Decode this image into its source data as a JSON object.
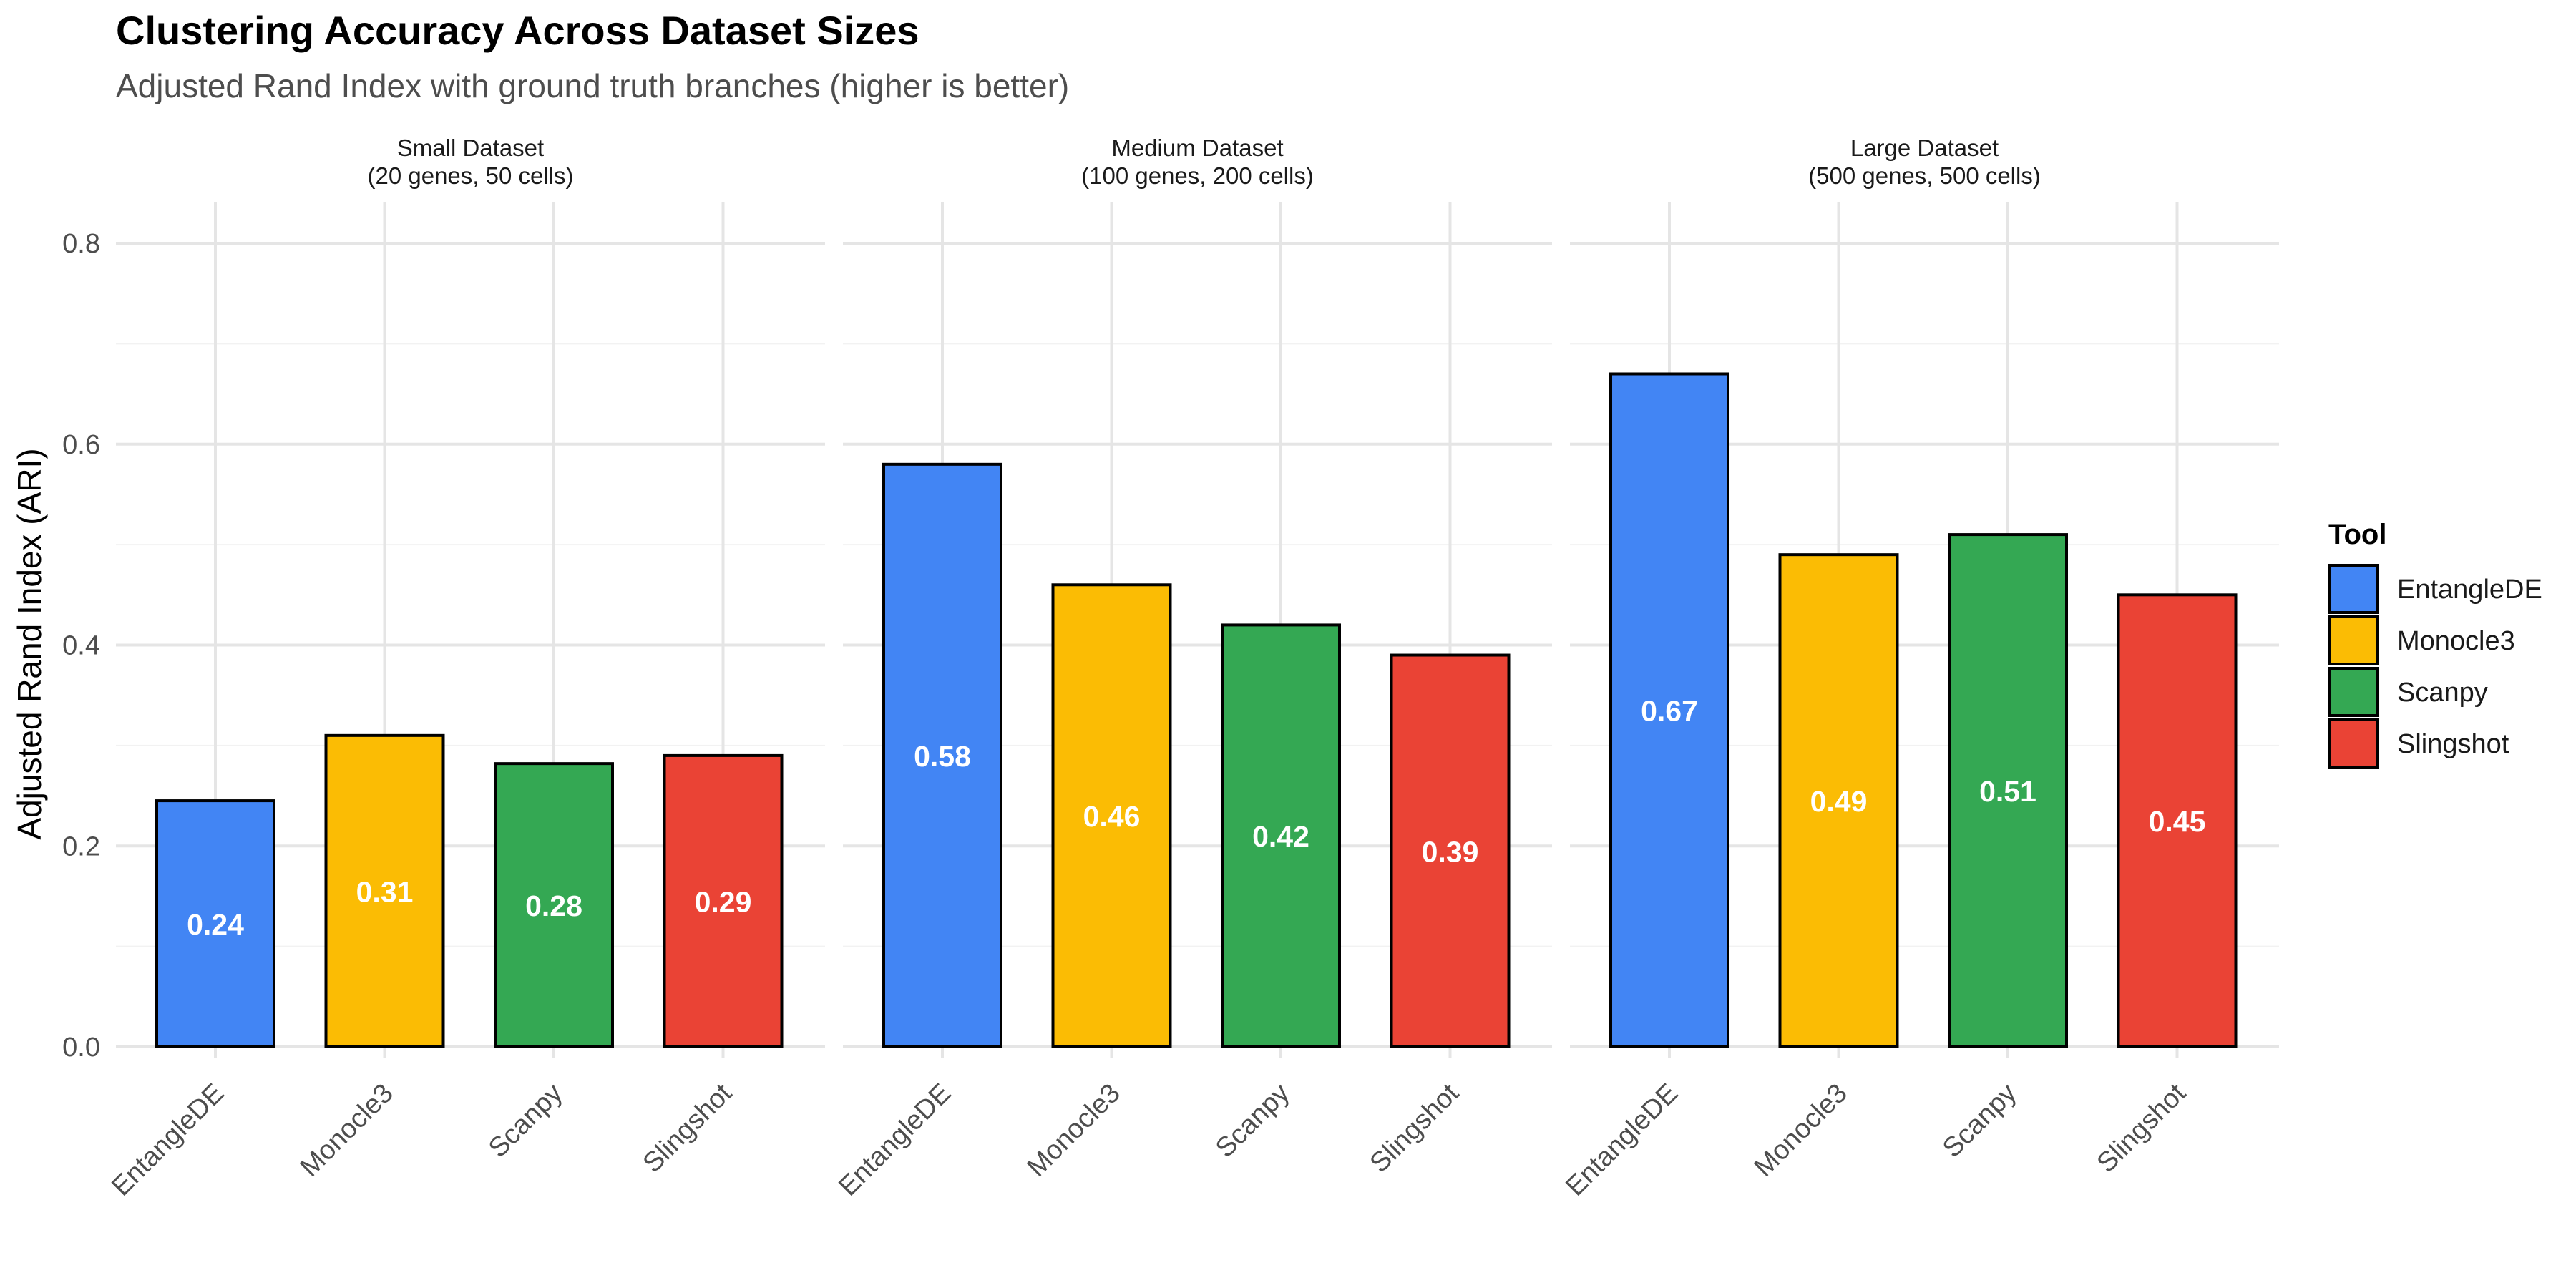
{
  "chart_data": {
    "type": "bar",
    "title": "Clustering Accuracy Across Dataset Sizes",
    "subtitle": "Adjusted Rand Index with ground truth branches (higher is better)",
    "ylabel": "Adjusted Rand Index (ARI)",
    "xlabel": "",
    "ylim": [
      0,
      0.8
    ],
    "yticks": [
      0.0,
      0.2,
      0.4,
      0.6,
      0.8
    ],
    "ytick_labels": [
      "0.0",
      "0.2",
      "0.4",
      "0.6",
      "0.8"
    ],
    "grid": true,
    "categories": [
      "EntangleDE",
      "Monocle3",
      "Scanpy",
      "Slingshot"
    ],
    "facets": [
      {
        "title_line1": "Small Dataset",
        "title_line2": "(20 genes, 50 cells)",
        "values": [
          0.245,
          0.31,
          0.282,
          0.29
        ],
        "labels": [
          "0.24",
          "0.31",
          "0.28",
          "0.29"
        ]
      },
      {
        "title_line1": "Medium Dataset",
        "title_line2": "(100 genes, 200 cells)",
        "values": [
          0.58,
          0.46,
          0.42,
          0.39
        ],
        "labels": [
          "0.58",
          "0.46",
          "0.42",
          "0.39"
        ]
      },
      {
        "title_line1": "Large Dataset",
        "title_line2": "(500 genes, 500 cells)",
        "values": [
          0.67,
          0.49,
          0.51,
          0.45
        ],
        "labels": [
          "0.67",
          "0.49",
          "0.51",
          "0.45"
        ]
      }
    ],
    "legend": {
      "title": "Tool",
      "position": "right",
      "items": [
        {
          "name": "EntangleDE",
          "color": "#4285F4"
        },
        {
          "name": "Monocle3",
          "color": "#FBBC04"
        },
        {
          "name": "Scanpy",
          "color": "#34A853"
        },
        {
          "name": "Slingshot",
          "color": "#EA4335"
        }
      ]
    }
  }
}
